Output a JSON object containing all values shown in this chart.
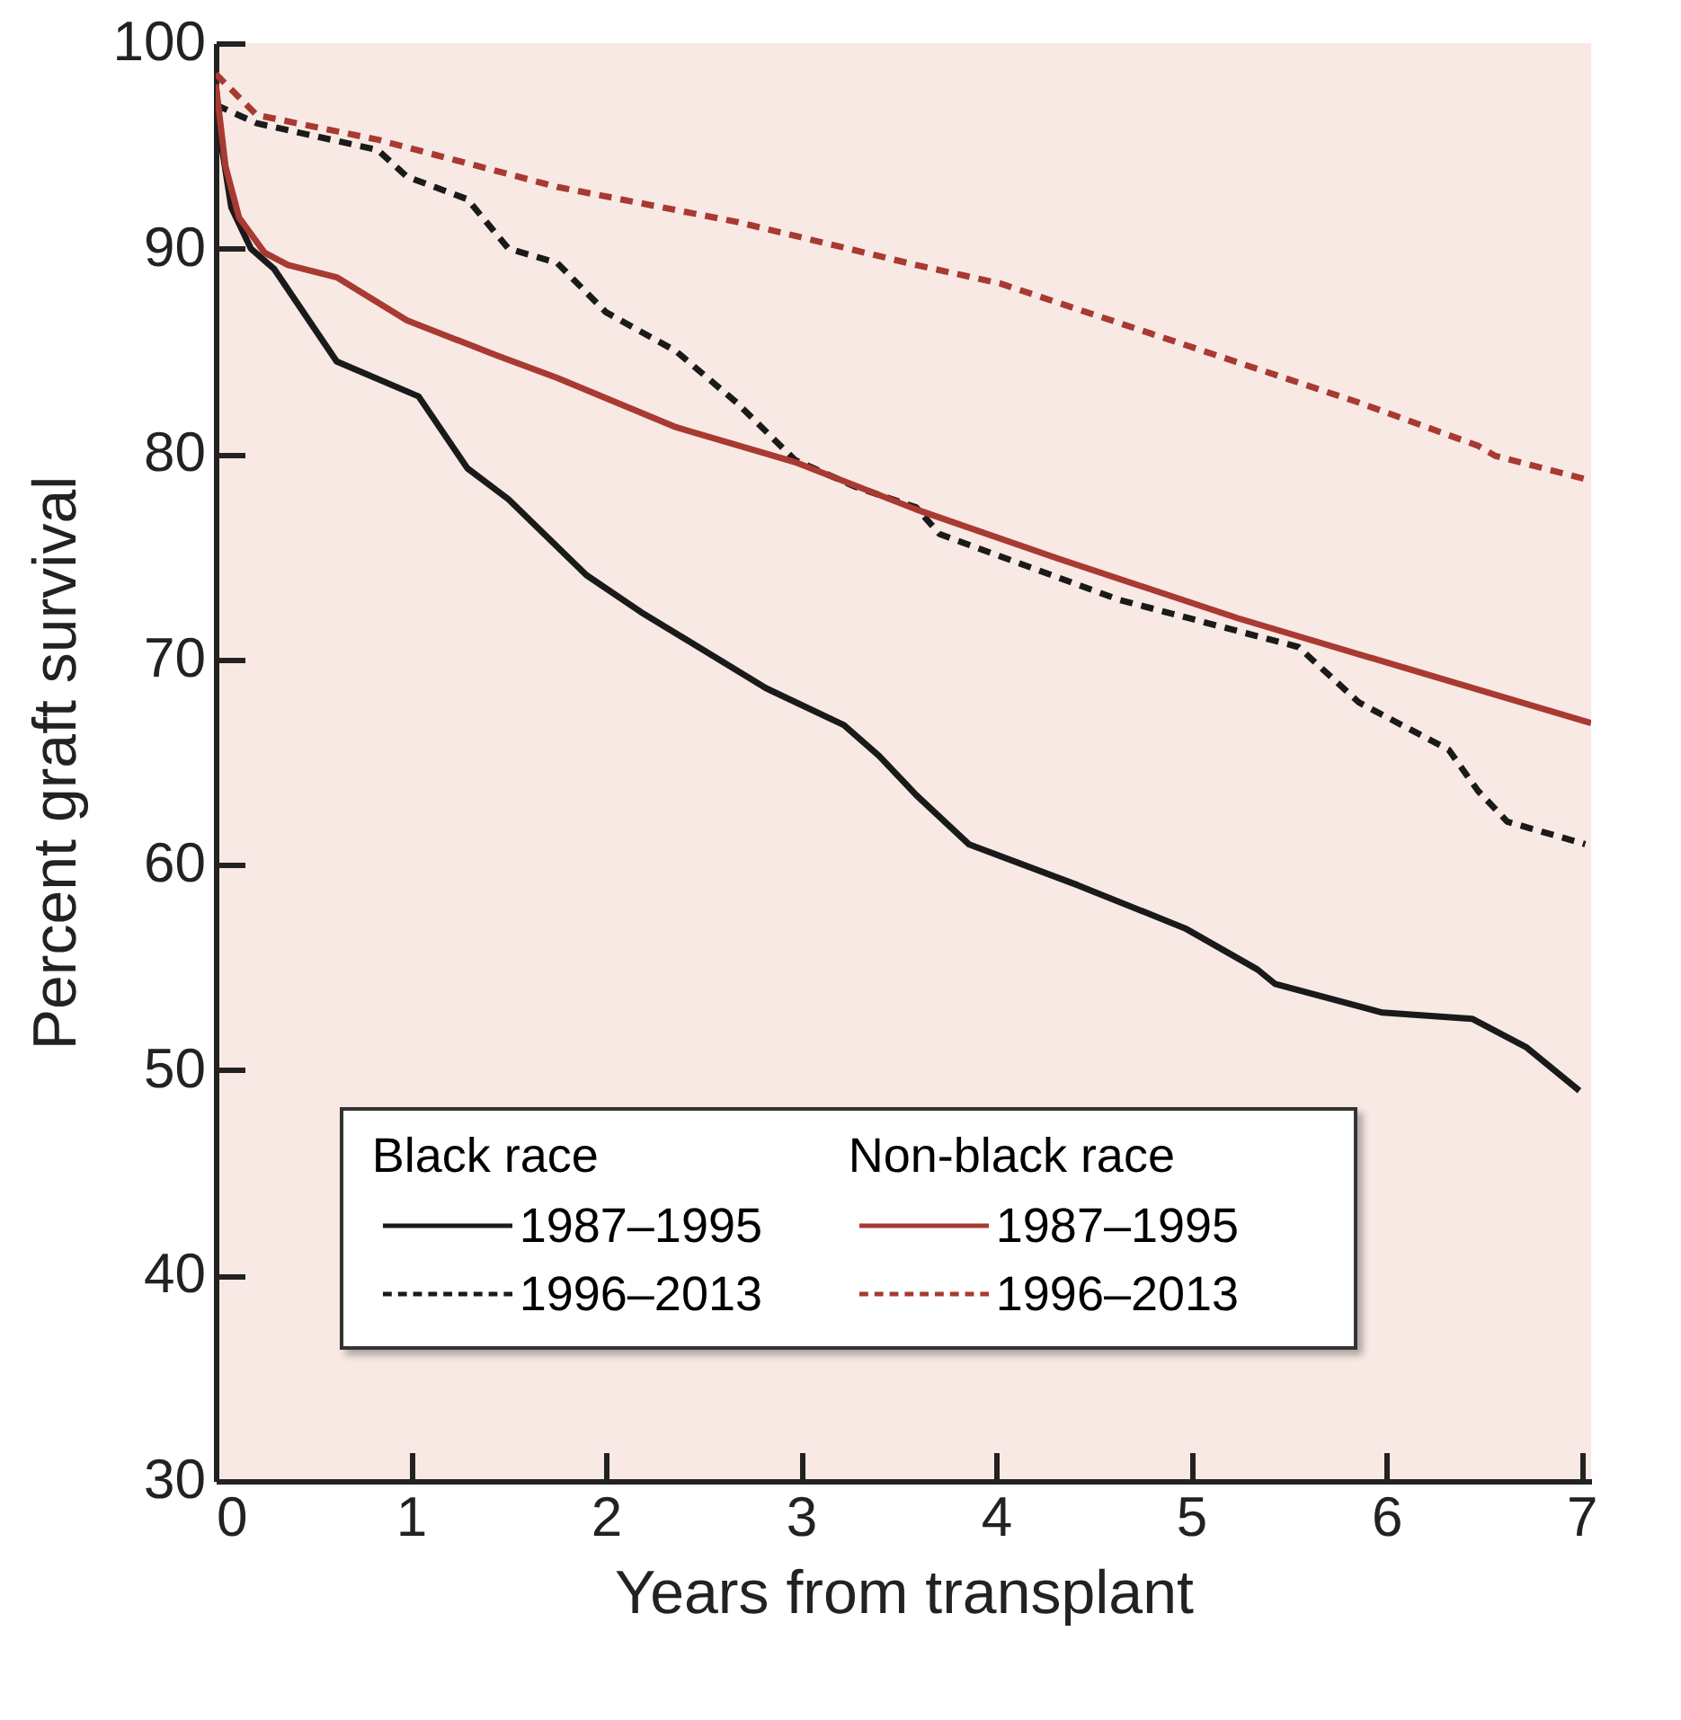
{
  "chart_data": {
    "type": "line",
    "xlabel": "Years from transplant",
    "ylabel": "Percent graft survival",
    "xlim": [
      0,
      7.05
    ],
    "ylim": [
      30,
      100
    ],
    "xticks": [
      0,
      1,
      2,
      3,
      4,
      5,
      6,
      7
    ],
    "yticks": [
      30,
      40,
      50,
      60,
      70,
      80,
      90,
      100
    ],
    "legend": "bottom left",
    "annotations": [
      "Black race",
      "Non-black race"
    ],
    "series": [
      {
        "name": "1987–1995",
        "color": "#1a1a1a",
        "line_style": "solid",
        "x": [
          0,
          0.03,
          0.08,
          0.18,
          0.3,
          0.62,
          1.04,
          1.29,
          1.5,
          1.9,
          2.18,
          2.82,
          3.22,
          3.4,
          3.59,
          3.86,
          4.42,
          4.97,
          5.34,
          5.43,
          5.98,
          6.44,
          6.72,
          6.99
        ],
        "values": [
          98,
          95,
          92,
          90,
          89,
          84.5,
          82.8,
          79.3,
          77.8,
          74.1,
          72.3,
          68.6,
          66.8,
          65.3,
          63.4,
          61,
          59,
          56.9,
          54.9,
          54.2,
          52.8,
          52.5,
          51.1,
          49
        ]
      },
      {
        "name": "1996–2013",
        "color": "#1a1a1a",
        "line_style": "dashed",
        "x": [
          0,
          0.21,
          0.83,
          0.98,
          1.29,
          1.5,
          1.75,
          2.0,
          2.36,
          2.67,
          2.97,
          3.28,
          3.59,
          3.71,
          4.63,
          5.55,
          5.86,
          6.32,
          6.47,
          6.62,
          7.02
        ],
        "values": [
          97,
          96.1,
          94.8,
          93.5,
          92.4,
          90,
          89.3,
          86.9,
          85,
          82.5,
          79.7,
          78.4,
          77.4,
          76.1,
          72.9,
          70.6,
          67.9,
          65.6,
          63.6,
          62.1,
          61
        ]
      },
      {
        "name": "1987–1995",
        "color": "#a83a32",
        "line_style": "solid",
        "x": [
          0,
          0.05,
          0.12,
          0.25,
          0.37,
          0.62,
          0.98,
          1.44,
          1.75,
          2.36,
          2.97,
          3.59,
          4.32,
          5.24,
          6.16,
          7.05
        ],
        "values": [
          98,
          94,
          91.5,
          89.8,
          89.2,
          88.6,
          86.5,
          84.8,
          83.7,
          81.3,
          79.6,
          77.3,
          74.9,
          72,
          69.4,
          66.9
        ]
      },
      {
        "name": "1996–2013",
        "color": "#a83a32",
        "line_style": "dashed",
        "x": [
          0,
          0.21,
          0.83,
          1.75,
          2.67,
          3.59,
          4.02,
          4.94,
          5.86,
          6.47,
          6.56,
          7.05
        ],
        "values": [
          98.5,
          96.5,
          95.3,
          93,
          91.3,
          89.2,
          88.3,
          85.4,
          82.5,
          80.4,
          79.9,
          78.7
        ]
      }
    ]
  }
}
